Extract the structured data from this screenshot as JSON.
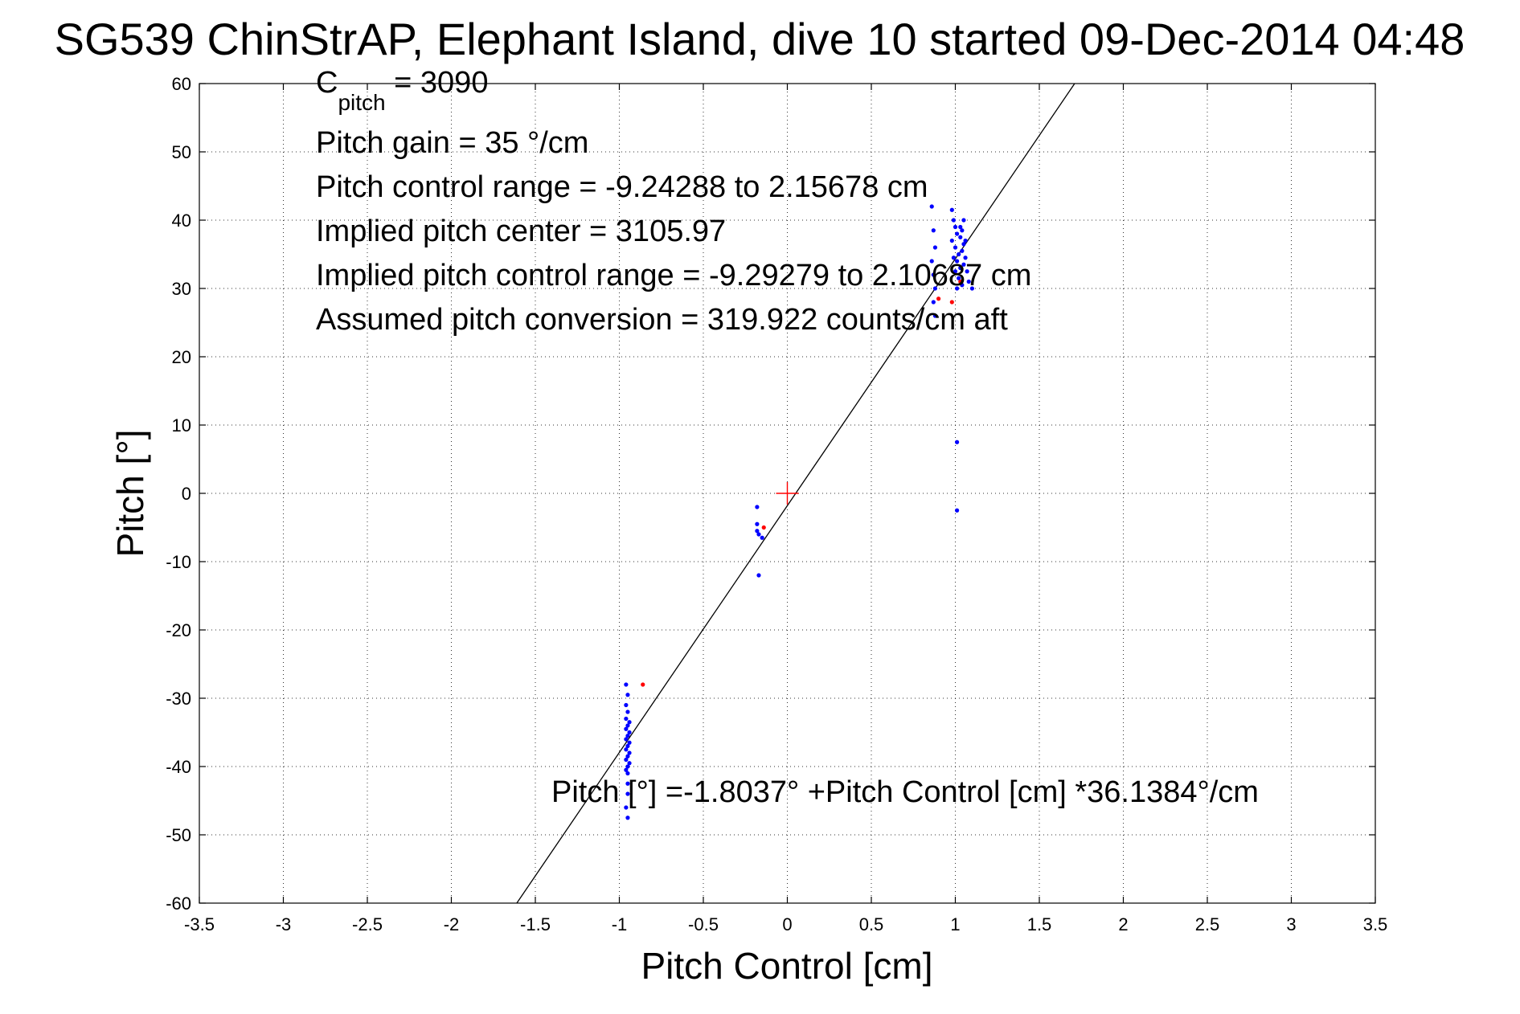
{
  "chart_data": {
    "type": "scatter",
    "title": "SG539 ChinStrAP, Elephant Island, dive 10 started 09-Dec-2014 04:48",
    "xlabel": "Pitch Control [cm]",
    "ylabel": "Pitch [°]",
    "xlim": [
      -3.5,
      3.5
    ],
    "ylim": [
      -60,
      60
    ],
    "x_ticks": [
      "-3.5",
      "-3",
      "-2.5",
      "-2",
      "-1.5",
      "-1",
      "-0.5",
      "0",
      "0.5",
      "1",
      "1.5",
      "2",
      "2.5",
      "3",
      "3.5"
    ],
    "y_ticks": [
      "60",
      "50",
      "40",
      "30",
      "20",
      "10",
      "0",
      "-10",
      "-20",
      "-30",
      "-40",
      "-50",
      "-60"
    ],
    "grid": true,
    "annotations": {
      "c_pitch_main": "C",
      "c_pitch_sub": "pitch",
      "c_pitch_value": " = 3090",
      "pitch_gain": "Pitch gain = 35 °/cm",
      "control_range": "Pitch control range = -9.24288 to 2.15678 cm",
      "implied_center": "Implied pitch center = 3105.97",
      "implied_range": "Implied pitch control range = -9.29279 to 2.10687 cm",
      "conversion": "Assumed pitch conversion = 319.922 counts/cm aft",
      "fit_equation": "Pitch [°] =-1.8037° +Pitch Control [cm] *36.1384°/cm"
    },
    "fit_line": {
      "intercept": -1.8037,
      "slope": 36.1384,
      "color": "#000000"
    },
    "center_marker": {
      "x": 0,
      "y": 0,
      "color": "#ff0000"
    },
    "series": [
      {
        "color": "#0000ff",
        "points": [
          [
            -0.96,
            -28
          ],
          [
            -0.95,
            -29.5
          ],
          [
            -0.96,
            -31
          ],
          [
            -0.95,
            -32
          ],
          [
            -0.96,
            -33
          ],
          [
            -0.94,
            -33.5
          ],
          [
            -0.95,
            -34
          ],
          [
            -0.96,
            -34.5
          ],
          [
            -0.94,
            -35
          ],
          [
            -0.95,
            -35.5
          ],
          [
            -0.96,
            -36
          ],
          [
            -0.94,
            -36.5
          ],
          [
            -0.95,
            -37
          ],
          [
            -0.96,
            -37.5
          ],
          [
            -0.94,
            -38
          ],
          [
            -0.95,
            -38.5
          ],
          [
            -0.96,
            -39
          ],
          [
            -0.94,
            -39.5
          ],
          [
            -0.95,
            -40
          ],
          [
            -0.96,
            -40.5
          ],
          [
            -0.95,
            -41
          ],
          [
            -0.95,
            -42.5
          ],
          [
            -0.95,
            -44
          ],
          [
            -0.96,
            -46
          ],
          [
            -0.95,
            -47.5
          ],
          [
            -0.18,
            -2
          ],
          [
            -0.18,
            -4.5
          ],
          [
            -0.18,
            -5.5
          ],
          [
            -0.17,
            -6
          ],
          [
            -0.15,
            -6.5
          ],
          [
            -0.17,
            -12
          ],
          [
            0.86,
            42
          ],
          [
            0.87,
            38.5
          ],
          [
            0.88,
            36
          ],
          [
            0.86,
            34
          ],
          [
            0.87,
            32
          ],
          [
            0.88,
            30
          ],
          [
            0.87,
            28
          ],
          [
            0.88,
            26
          ],
          [
            0.98,
            41.5
          ],
          [
            0.99,
            40
          ],
          [
            1.0,
            39
          ],
          [
            1.01,
            38
          ],
          [
            0.98,
            37
          ],
          [
            1.0,
            36
          ],
          [
            1.02,
            35
          ],
          [
            0.99,
            34.5
          ],
          [
            1.01,
            34
          ],
          [
            1.03,
            33
          ],
          [
            1.0,
            32.5
          ],
          [
            1.02,
            31.5
          ],
          [
            1.04,
            30.5
          ],
          [
            1.01,
            30
          ],
          [
            1.03,
            37.5
          ],
          [
            1.05,
            36.5
          ],
          [
            1.04,
            35.5
          ],
          [
            1.06,
            34.5
          ],
          [
            1.05,
            33.5
          ],
          [
            1.07,
            32.5
          ],
          [
            1.04,
            38.5
          ],
          [
            1.06,
            37
          ],
          [
            1.08,
            31
          ],
          [
            1.1,
            30
          ],
          [
            1.05,
            40
          ],
          [
            1.03,
            39
          ],
          [
            1.01,
            7.5
          ],
          [
            1.01,
            -2.5
          ]
        ]
      },
      {
        "color": "#ff0000",
        "points": [
          [
            -0.86,
            -28
          ],
          [
            -0.14,
            -5
          ],
          [
            0.98,
            28
          ],
          [
            0.9,
            28.5
          ],
          [
            1.03,
            31
          ]
        ]
      }
    ]
  }
}
